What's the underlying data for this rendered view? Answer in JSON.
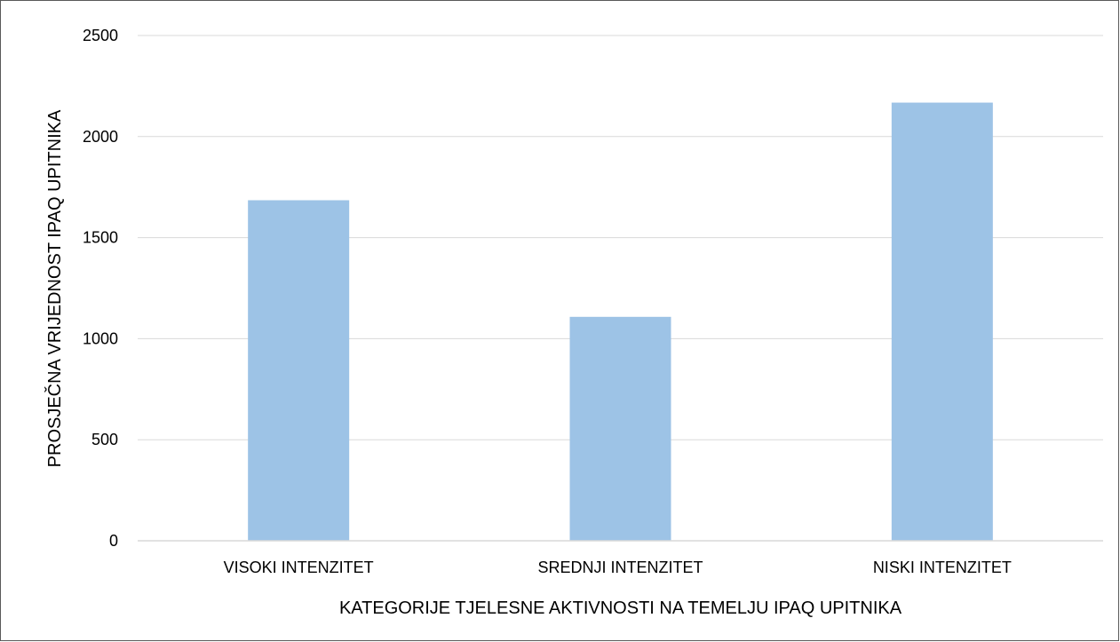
{
  "chart_data": {
    "type": "bar",
    "title": "",
    "categories": [
      "VISOKI INTENZITET",
      "SREDNJI INTENZITET",
      "NISKI INTENZITET"
    ],
    "series": [
      {
        "values": [
          1685,
          1108,
          2168
        ]
      }
    ],
    "xlabel": "KATEGORIJE TJELESNE AKTIVNOSTI NA TEMELJU IPAQ UPITNIKA",
    "ylabel": "PROSJEČNA VRIJEDNOST IPAQ UPITNIKA",
    "ylim": [
      0,
      2500
    ],
    "yticks": [
      0,
      500,
      1000,
      1500,
      2000,
      2500
    ],
    "grid": true,
    "legend": "none",
    "colors": {
      "bar": "#9DC3E6",
      "grid": "#D9D9D9",
      "axis": "#D9D9D9",
      "border": "#595959"
    }
  }
}
